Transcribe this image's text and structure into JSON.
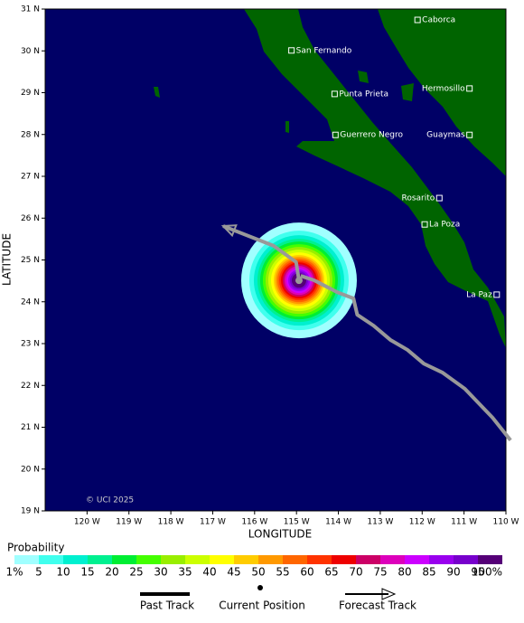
{
  "map": {
    "xlabel": "LONGITUDE",
    "ylabel": "LATITUDE",
    "credit": "© UCI 2025",
    "lonlim": [
      -121,
      -110
    ],
    "latlim": [
      19,
      31
    ],
    "xticks": [
      {
        "value": -120,
        "label": "120 W"
      },
      {
        "value": -119,
        "label": "119 W"
      },
      {
        "value": -118,
        "label": "118 W"
      },
      {
        "value": -117,
        "label": "117 W"
      },
      {
        "value": -116,
        "label": "116 W"
      },
      {
        "value": -115,
        "label": "115 W"
      },
      {
        "value": -114,
        "label": "114 W"
      },
      {
        "value": -113,
        "label": "113 W"
      },
      {
        "value": -112,
        "label": "112 W"
      },
      {
        "value": -111,
        "label": "111 W"
      },
      {
        "value": -110,
        "label": "110 W"
      }
    ],
    "yticks": [
      {
        "value": 19,
        "label": "19 N"
      },
      {
        "value": 20,
        "label": "20 N"
      },
      {
        "value": 21,
        "label": "21 N"
      },
      {
        "value": 22,
        "label": "22 N"
      },
      {
        "value": 23,
        "label": "23 N"
      },
      {
        "value": 24,
        "label": "24 N"
      },
      {
        "value": 25,
        "label": "25 N"
      },
      {
        "value": 26,
        "label": "26 N"
      },
      {
        "value": 27,
        "label": "27 N"
      },
      {
        "value": 28,
        "label": "28 N"
      },
      {
        "value": 29,
        "label": "29 N"
      },
      {
        "value": 30,
        "label": "30 N"
      },
      {
        "value": 31,
        "label": "31 N"
      }
    ],
    "cities": [
      {
        "name": "Caborca",
        "lon": -112.11,
        "lat": 30.74
      },
      {
        "name": "San Fernando",
        "lon": -115.12,
        "lat": 30.01
      },
      {
        "name": "Hermosillo",
        "lon": -110.87,
        "lat": 29.1
      },
      {
        "name": "Punta Prieta",
        "lon": -114.09,
        "lat": 28.97
      },
      {
        "name": "Guerrero Negro",
        "lon": -114.07,
        "lat": 27.99
      },
      {
        "name": "Guaymas",
        "lon": -110.87,
        "lat": 27.99
      },
      {
        "name": "Rosarito",
        "lon": -111.59,
        "lat": 26.48
      },
      {
        "name": "La Poza",
        "lon": -111.94,
        "lat": 25.85
      },
      {
        "name": "La Paz",
        "lon": -110.22,
        "lat": 24.17
      }
    ],
    "past_track": {
      "lon": [
        -109.89,
        -110.32,
        -110.98,
        -111.52,
        -111.96,
        -112.35,
        -112.76,
        -113.16,
        -113.55,
        -113.64,
        -114.03,
        -114.57,
        -114.9
      ],
      "lat": [
        20.69,
        21.23,
        21.92,
        22.31,
        22.52,
        22.85,
        23.09,
        23.43,
        23.69,
        24.08,
        24.23,
        24.51,
        24.62
      ]
    },
    "forecast_track": {
      "lon": [
        -114.94,
        -115.01,
        -115.55,
        -116.75
      ],
      "lat": [
        24.51,
        24.95,
        25.34,
        25.81
      ]
    },
    "current_position": {
      "lon": -114.94,
      "lat": 24.51
    },
    "track_color": "#999999"
  },
  "legend": {
    "title": "Probability",
    "scale": [
      {
        "value": 1,
        "label": "1%"
      },
      5,
      10,
      15,
      20,
      25,
      30,
      35,
      40,
      45,
      50,
      55,
      60,
      65,
      70,
      75,
      80,
      85,
      90,
      95,
      {
        "value": 100,
        "label": "100%"
      }
    ],
    "colors": [
      "#a0ffff",
      "#40ffee",
      "#00f0d0",
      "#00f090",
      "#00ee33",
      "#44ff00",
      "#99ee00",
      "#ccff00",
      "#ffff00",
      "#ffcc00",
      "#ff9900",
      "#ff6600",
      "#ff3300",
      "#ee0000",
      "#cc0066",
      "#dd00bb",
      "#cc00ff",
      "#9900ee",
      "#7700cc",
      "#550077"
    ],
    "items": [
      "Past Track",
      "Current Position",
      "Forecast Track"
    ]
  }
}
